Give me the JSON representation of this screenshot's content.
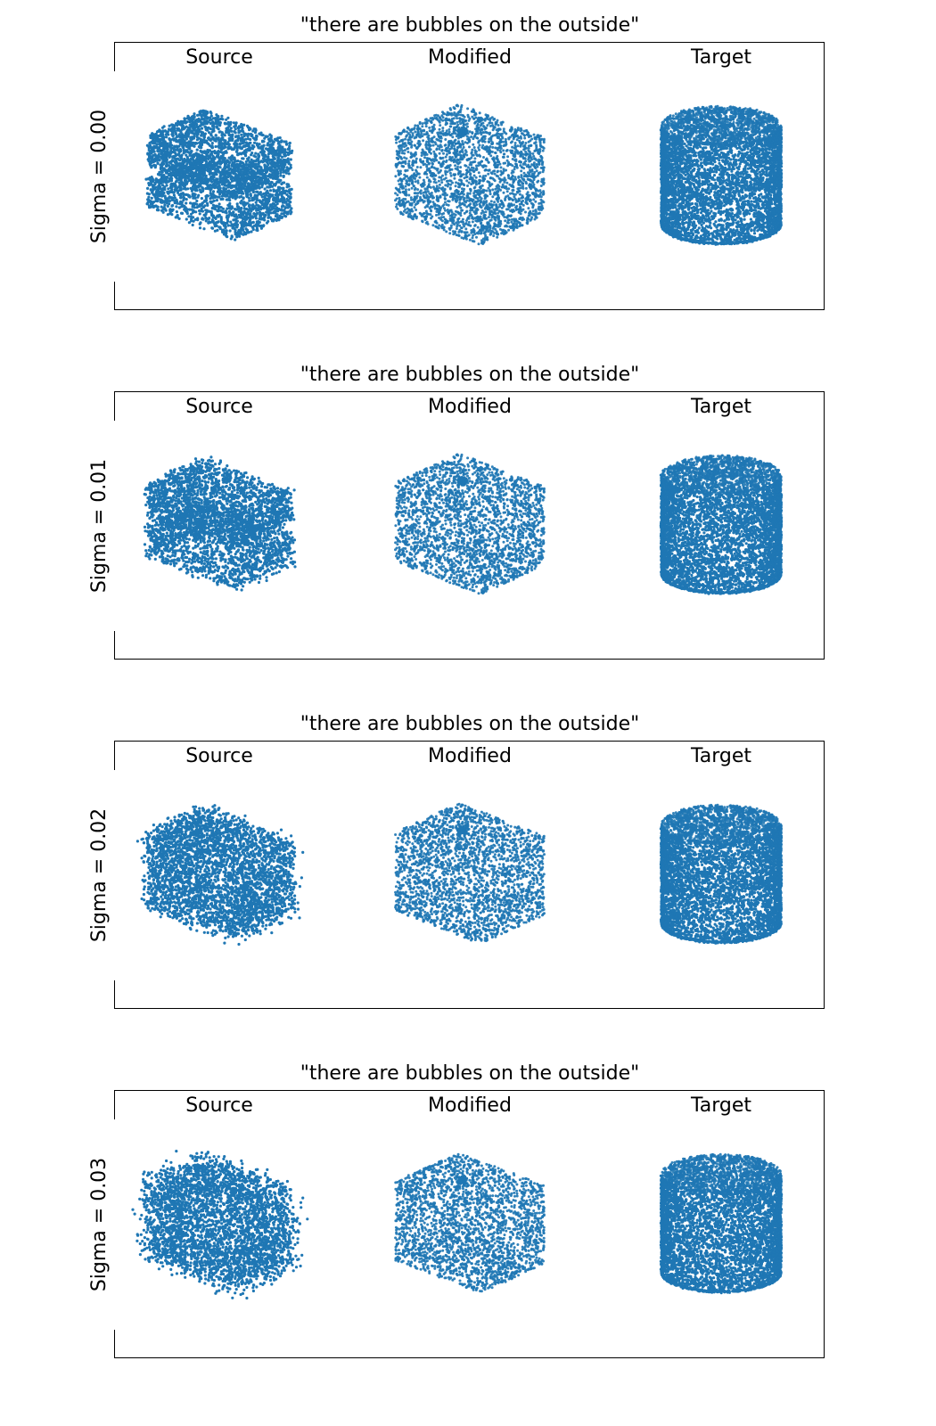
{
  "chart_data": {
    "type": "scatter",
    "description_kind": "3d point clouds",
    "point_color": "#1f77b4",
    "columns": [
      "Source",
      "Modified",
      "Target"
    ],
    "panels": [
      {
        "title": "\"there are bubbles on the outside\"",
        "row_label": "Sigma = 0.00",
        "sigma": 0.0,
        "shapes": {
          "Source": "two stacked slabs",
          "Modified": "cube",
          "Target": "cylinder"
        }
      },
      {
        "title": "\"there are bubbles on the outside\"",
        "row_label": "Sigma = 0.01",
        "sigma": 0.01,
        "shapes": {
          "Source": "two stacked slabs",
          "Modified": "cube",
          "Target": "cylinder"
        }
      },
      {
        "title": "\"there are bubbles on the outside\"",
        "row_label": "Sigma = 0.02",
        "sigma": 0.02,
        "shapes": {
          "Source": "box",
          "Modified": "cube",
          "Target": "cylinder"
        }
      },
      {
        "title": "\"there are bubbles on the outside\"",
        "row_label": "Sigma = 0.03",
        "sigma": 0.03,
        "shapes": {
          "Source": "box",
          "Modified": "cube",
          "Target": "cylinder"
        }
      }
    ]
  }
}
